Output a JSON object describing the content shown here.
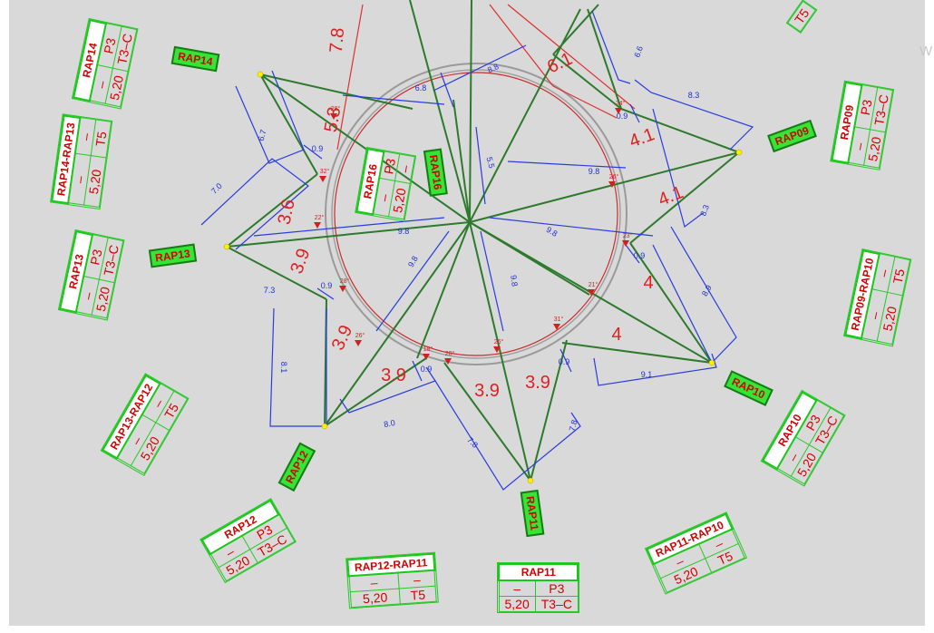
{
  "center_tag": "RAP16",
  "tags": {
    "rap14": "RAP14",
    "rap13": "RAP13",
    "rap12": "RAP12",
    "rap11": "RAP11",
    "rap10": "RAP10",
    "rap09": "RAP09"
  },
  "tables": {
    "t_rap14": [
      "RAP14",
      "5,20",
      "–",
      "T3–C",
      "P3"
    ],
    "t_rap14_13": [
      "RAP14-RAP13",
      "5,20",
      "–",
      "T5",
      "–"
    ],
    "t_rap13": [
      "RAP13",
      "5,20",
      "–",
      "T3–C",
      "P3"
    ],
    "t_rap13_12": [
      "RAP13-RAP12",
      "5,20",
      "–",
      "T5",
      "–"
    ],
    "t_rap12": [
      "RAP12",
      "5,20",
      "–",
      "T3–C",
      "P3"
    ],
    "t_rap12_11": [
      "RAP12-RAP11",
      "5,20",
      "–",
      "T5",
      "–"
    ],
    "t_rap11": [
      "RAP11",
      "5,20",
      "–",
      "T3–C",
      "P3"
    ],
    "t_rap11_10": [
      "RAP11-RAP10",
      "5,20",
      "–",
      "T5",
      "–"
    ],
    "t_rap10": [
      "RAP10",
      "5,20",
      "–",
      "T3–C",
      "P3"
    ],
    "t_rap09_10": [
      "RAP09-RAP10",
      "5,20",
      "–",
      "T5",
      "–"
    ],
    "t_rap09": [
      "RAP09",
      "5,20",
      "–",
      "T3–C",
      "P3"
    ],
    "t_rap16": [
      "RAP16",
      "5,20",
      "–",
      "–",
      "P3"
    ],
    "t_top": [
      "",
      "",
      "",
      "T5",
      ""
    ]
  },
  "red_numbers": [
    "7.8",
    "6.1",
    "5.3",
    "4.1",
    "4.1",
    "3.6",
    "3.9",
    "4",
    "4",
    "3.9",
    "3.9",
    "3.9",
    "3.9"
  ],
  "blue_dims": [
    "6.8",
    "8.8",
    "6.6",
    "8.3",
    "6.7",
    "0.9",
    "5.5",
    "9.8",
    "8.3",
    "7.0",
    "9.8",
    "9.8",
    "0.9",
    "8.9",
    "7.3",
    "0.9",
    "9.8",
    "9.8",
    "8.1",
    "8.0",
    "0.9",
    "7.8",
    "7.8",
    "9.1",
    "0.9",
    "0.9"
  ],
  "angle_marks": [
    "28°",
    "24°",
    "32°",
    "26°",
    "23°",
    "22°",
    "28°",
    "21°",
    "26°",
    "31°",
    "18°",
    "26°",
    "28°"
  ],
  "watermark": "W"
}
